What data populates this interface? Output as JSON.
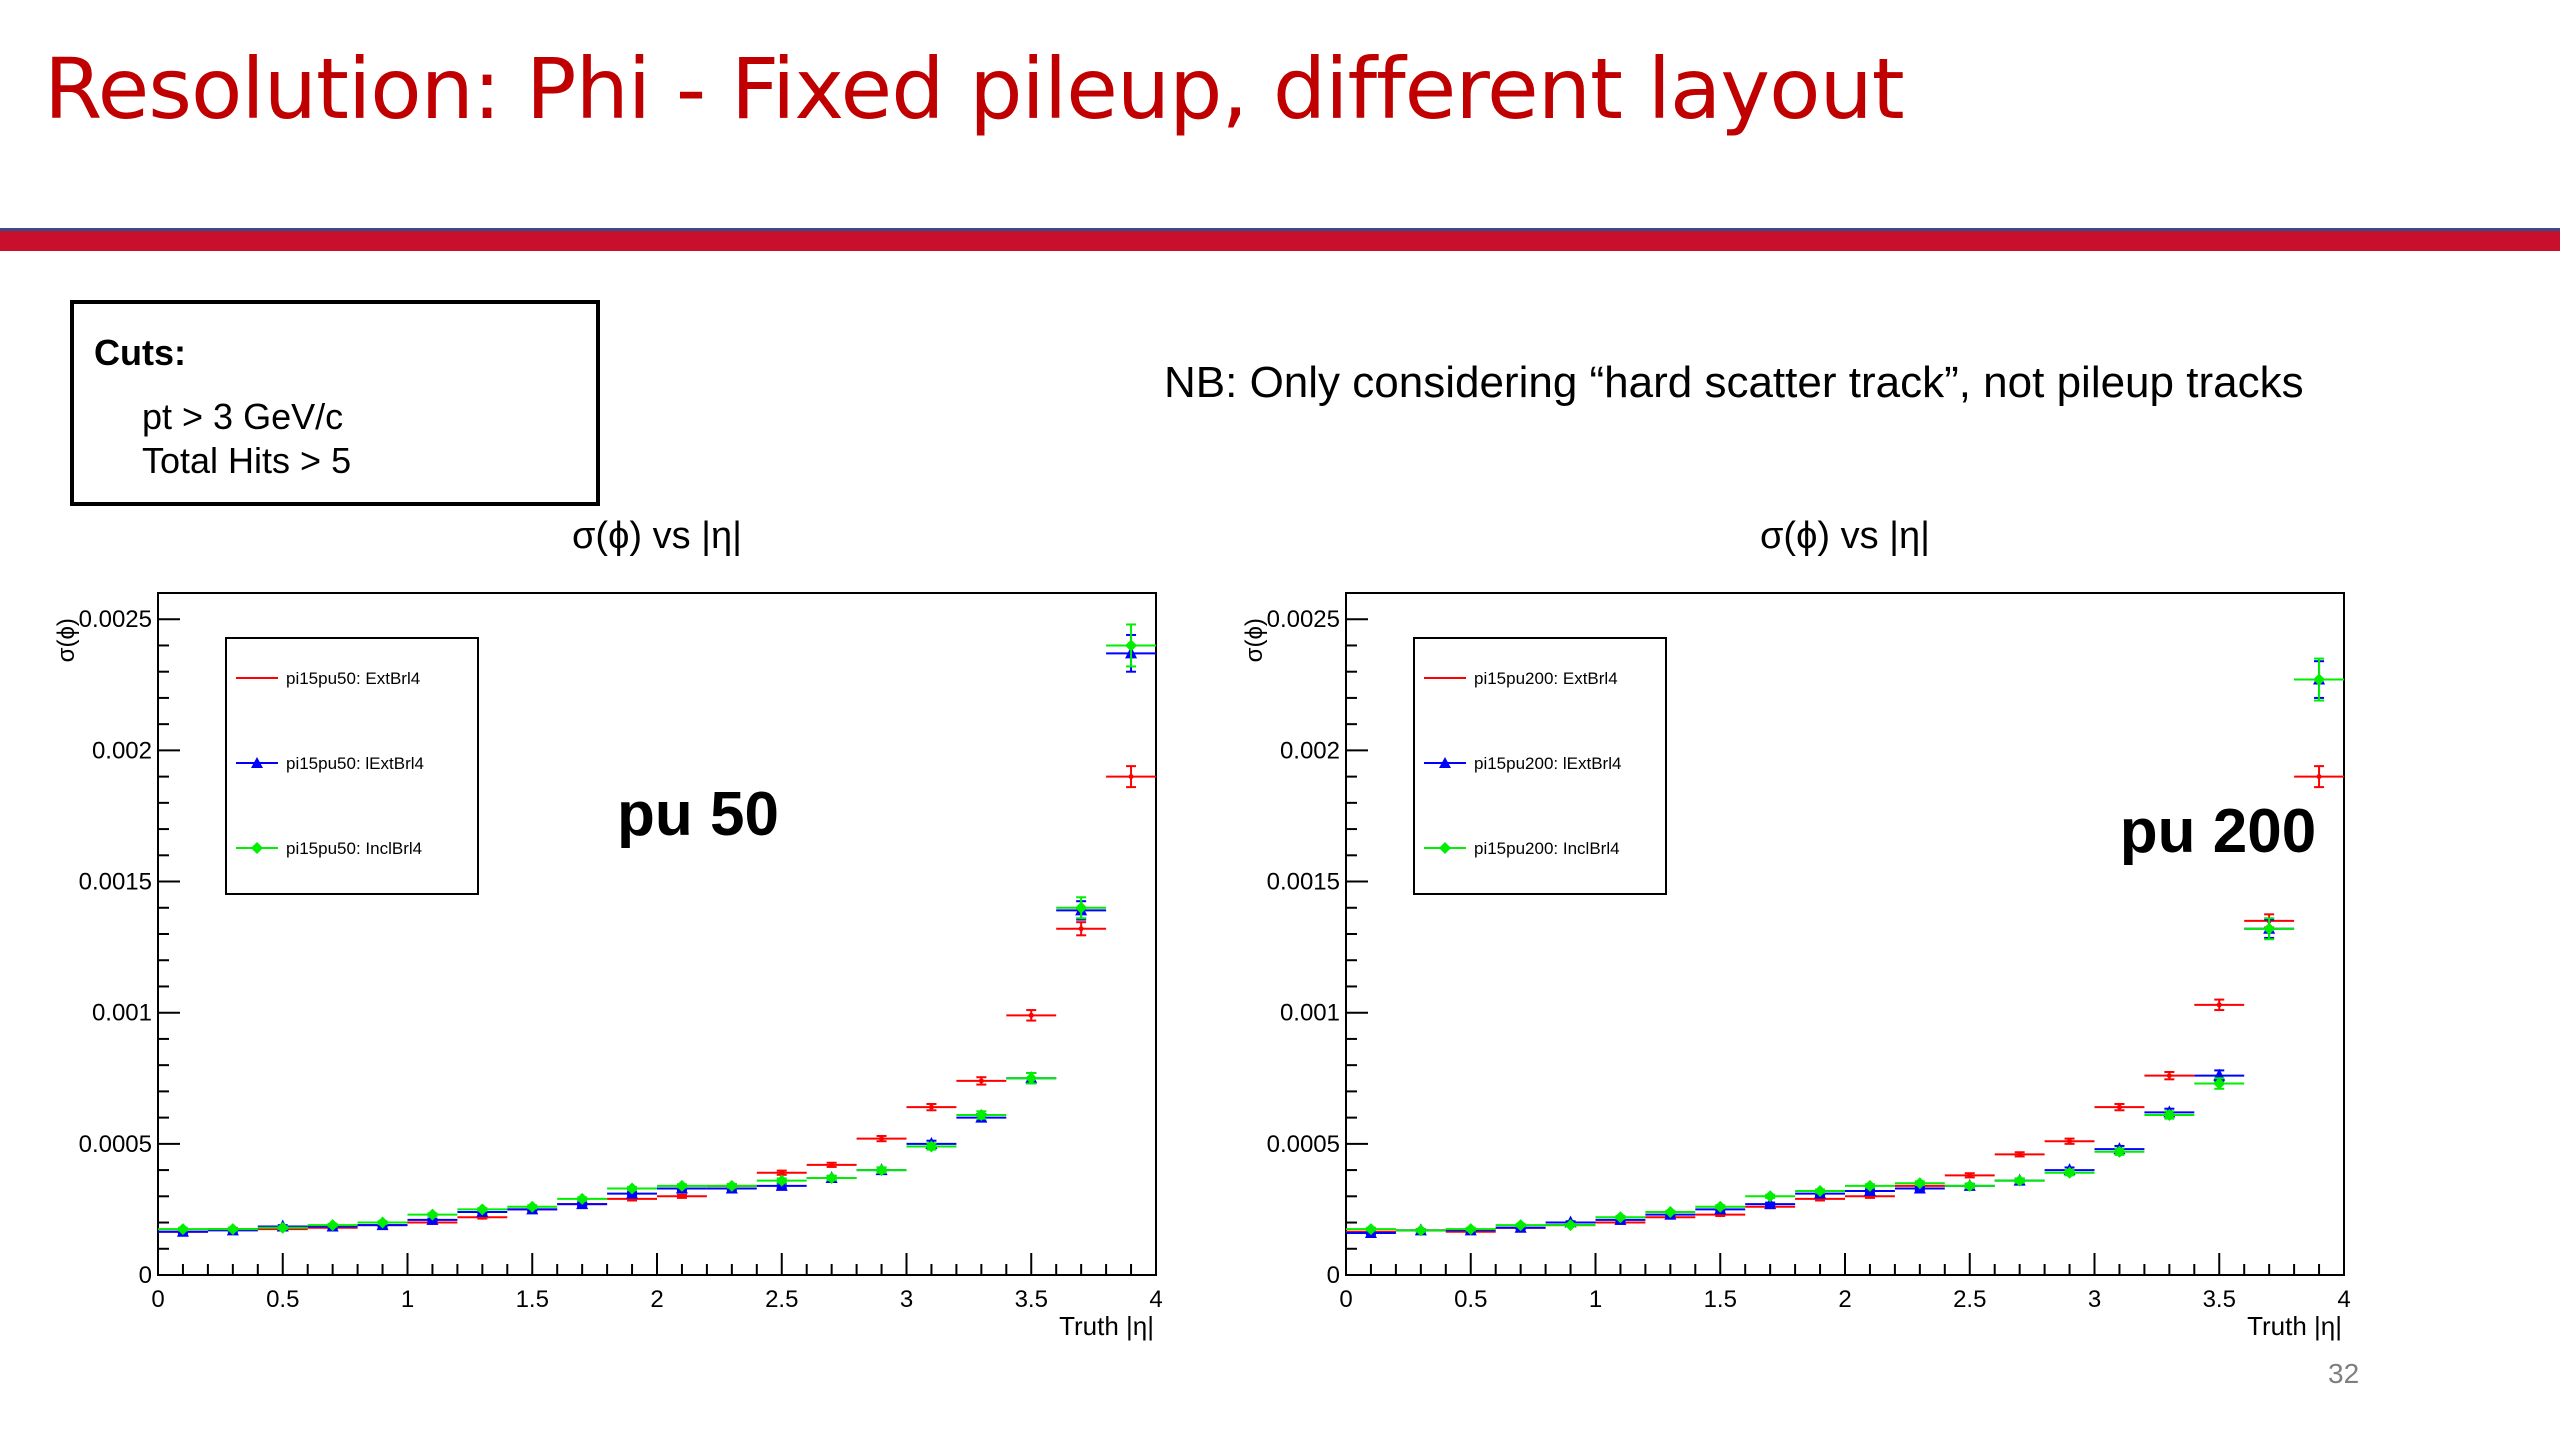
{
  "slide": {
    "title": "Resolution: Phi - Fixed pileup, different layout",
    "page_number": "32",
    "cuts": {
      "title": "Cuts:",
      "line1": "pt > 3 GeV/c",
      "line2": "Total Hits > 5"
    },
    "note": "NB: Only considering “hard scatter track”, not pileup tracks"
  },
  "chart_data": [
    {
      "type": "scatter",
      "title": "σ(ϕ) vs |η|",
      "xlabel": "Truth |η|",
      "ylabel": "σ(ϕ)",
      "annotation": "pu 50",
      "xlim": [
        0,
        4
      ],
      "ylim": [
        0,
        0.0025
      ],
      "xticks": [
        "0",
        "0.5",
        "1",
        "1.5",
        "2",
        "2.5",
        "3",
        "3.5",
        "4"
      ],
      "yticks": [
        "0",
        "0.0005",
        "0.001",
        "0.0015",
        "0.002",
        "0.0025"
      ],
      "x": [
        0.1,
        0.3,
        0.5,
        0.7,
        0.9,
        1.1,
        1.3,
        1.5,
        1.7,
        1.9,
        2.1,
        2.3,
        2.5,
        2.7,
        2.9,
        3.1,
        3.3,
        3.5,
        3.7,
        3.9
      ],
      "grid": false,
      "legend_position": "top-left",
      "series": [
        {
          "name": "pi15pu50: ExtBrl4",
          "color": "#ff0000",
          "marker": "dot",
          "values": [
            0.000165,
            0.000175,
            0.000175,
            0.00018,
            0.00019,
            0.0002,
            0.00022,
            0.00025,
            0.00027,
            0.00029,
            0.0003,
            0.00034,
            0.00039,
            0.00042,
            0.00052,
            0.00064,
            0.00074,
            0.00099,
            0.00132,
            0.0019
          ],
          "errors": [
            5e-06,
            5e-06,
            5e-06,
            5e-06,
            5e-06,
            5e-06,
            5e-06,
            5e-06,
            5e-06,
            6e-06,
            6e-06,
            7e-06,
            8e-06,
            8e-06,
            1e-05,
            1.2e-05,
            1.4e-05,
            2e-05,
            2.5e-05,
            4e-05
          ]
        },
        {
          "name": "pi15pu50: lExtBrl4",
          "color": "#0000ff",
          "marker": "triangle",
          "values": [
            0.000165,
            0.00017,
            0.000185,
            0.000185,
            0.00019,
            0.00021,
            0.00024,
            0.00025,
            0.00027,
            0.00031,
            0.00033,
            0.00033,
            0.00034,
            0.00037,
            0.0004,
            0.0005,
            0.0006,
            0.00075,
            0.00139,
            0.00237
          ],
          "errors": [
            5e-06,
            5e-06,
            5e-06,
            5e-06,
            5e-06,
            5e-06,
            5e-06,
            5e-06,
            6e-06,
            6e-06,
            6e-06,
            7e-06,
            8e-06,
            8e-06,
            1e-05,
            1.2e-05,
            1.4e-05,
            2e-05,
            3.5e-05,
            7e-05
          ]
        },
        {
          "name": "pi15pu50: InclBrl4",
          "color": "#00ee00",
          "marker": "diamond",
          "values": [
            0.000175,
            0.000175,
            0.00018,
            0.00019,
            0.0002,
            0.00023,
            0.00025,
            0.00026,
            0.00029,
            0.00033,
            0.00034,
            0.00034,
            0.00036,
            0.00037,
            0.0004,
            0.00049,
            0.00061,
            0.00075,
            0.0014,
            0.0024
          ],
          "errors": [
            5e-06,
            5e-06,
            5e-06,
            5e-06,
            5e-06,
            5e-06,
            5e-06,
            6e-06,
            6e-06,
            6e-06,
            6e-06,
            7e-06,
            8e-06,
            8e-06,
            1e-05,
            1.2e-05,
            1.4e-05,
            2e-05,
            4e-05,
            8e-05
          ]
        }
      ]
    },
    {
      "type": "scatter",
      "title": "σ(ϕ) vs |η|",
      "xlabel": "Truth |η|",
      "ylabel": "σ(ϕ)",
      "annotation": "pu 200",
      "xlim": [
        0,
        4
      ],
      "ylim": [
        0,
        0.0025
      ],
      "xticks": [
        "0",
        "0.5",
        "1",
        "1.5",
        "2",
        "2.5",
        "3",
        "3.5",
        "4"
      ],
      "yticks": [
        "0",
        "0.0005",
        "0.001",
        "0.0015",
        "0.002",
        "0.0025"
      ],
      "x": [
        0.1,
        0.3,
        0.5,
        0.7,
        0.9,
        1.1,
        1.3,
        1.5,
        1.7,
        1.9,
        2.1,
        2.3,
        2.5,
        2.7,
        2.9,
        3.1,
        3.3,
        3.5,
        3.7,
        3.9
      ],
      "grid": false,
      "legend_position": "top-left",
      "series": [
        {
          "name": "pi15pu200: ExtBrl4",
          "color": "#ff0000",
          "marker": "dot",
          "values": [
            0.000165,
            0.00017,
            0.000165,
            0.00018,
            0.00019,
            0.0002,
            0.00022,
            0.00023,
            0.00026,
            0.00029,
            0.0003,
            0.00034,
            0.00038,
            0.00046,
            0.00051,
            0.00064,
            0.00076,
            0.00103,
            0.00135,
            0.0019
          ],
          "errors": [
            5e-06,
            5e-06,
            5e-06,
            5e-06,
            5e-06,
            5e-06,
            5e-06,
            5e-06,
            5e-06,
            6e-06,
            6e-06,
            7e-06,
            8e-06,
            8e-06,
            1e-05,
            1.2e-05,
            1.4e-05,
            2e-05,
            2.5e-05,
            4e-05
          ]
        },
        {
          "name": "pi15pu200: lExtBrl4",
          "color": "#0000ff",
          "marker": "triangle",
          "values": [
            0.00016,
            0.00017,
            0.00017,
            0.00018,
            0.0002,
            0.00021,
            0.00023,
            0.00025,
            0.00027,
            0.00031,
            0.00032,
            0.00033,
            0.00034,
            0.00036,
            0.0004,
            0.00048,
            0.00062,
            0.00076,
            0.00132,
            0.00227
          ],
          "errors": [
            5e-06,
            5e-06,
            5e-06,
            5e-06,
            5e-06,
            5e-06,
            5e-06,
            5e-06,
            6e-06,
            6e-06,
            6e-06,
            7e-06,
            8e-06,
            8e-06,
            1e-05,
            1.2e-05,
            1.4e-05,
            2e-05,
            3.5e-05,
            7e-05
          ]
        },
        {
          "name": "pi15pu200: InclBrl4",
          "color": "#00ee00",
          "marker": "diamond",
          "values": [
            0.000175,
            0.00017,
            0.000175,
            0.00019,
            0.00019,
            0.00022,
            0.00024,
            0.00026,
            0.0003,
            0.00032,
            0.00034,
            0.00035,
            0.00034,
            0.00036,
            0.00039,
            0.00047,
            0.00061,
            0.00073,
            0.00132,
            0.00227
          ],
          "errors": [
            5e-06,
            5e-06,
            5e-06,
            5e-06,
            5e-06,
            5e-06,
            5e-06,
            6e-06,
            6e-06,
            6e-06,
            6e-06,
            7e-06,
            8e-06,
            8e-06,
            1e-05,
            1.2e-05,
            1.4e-05,
            2e-05,
            4e-05,
            8e-05
          ]
        }
      ]
    }
  ]
}
